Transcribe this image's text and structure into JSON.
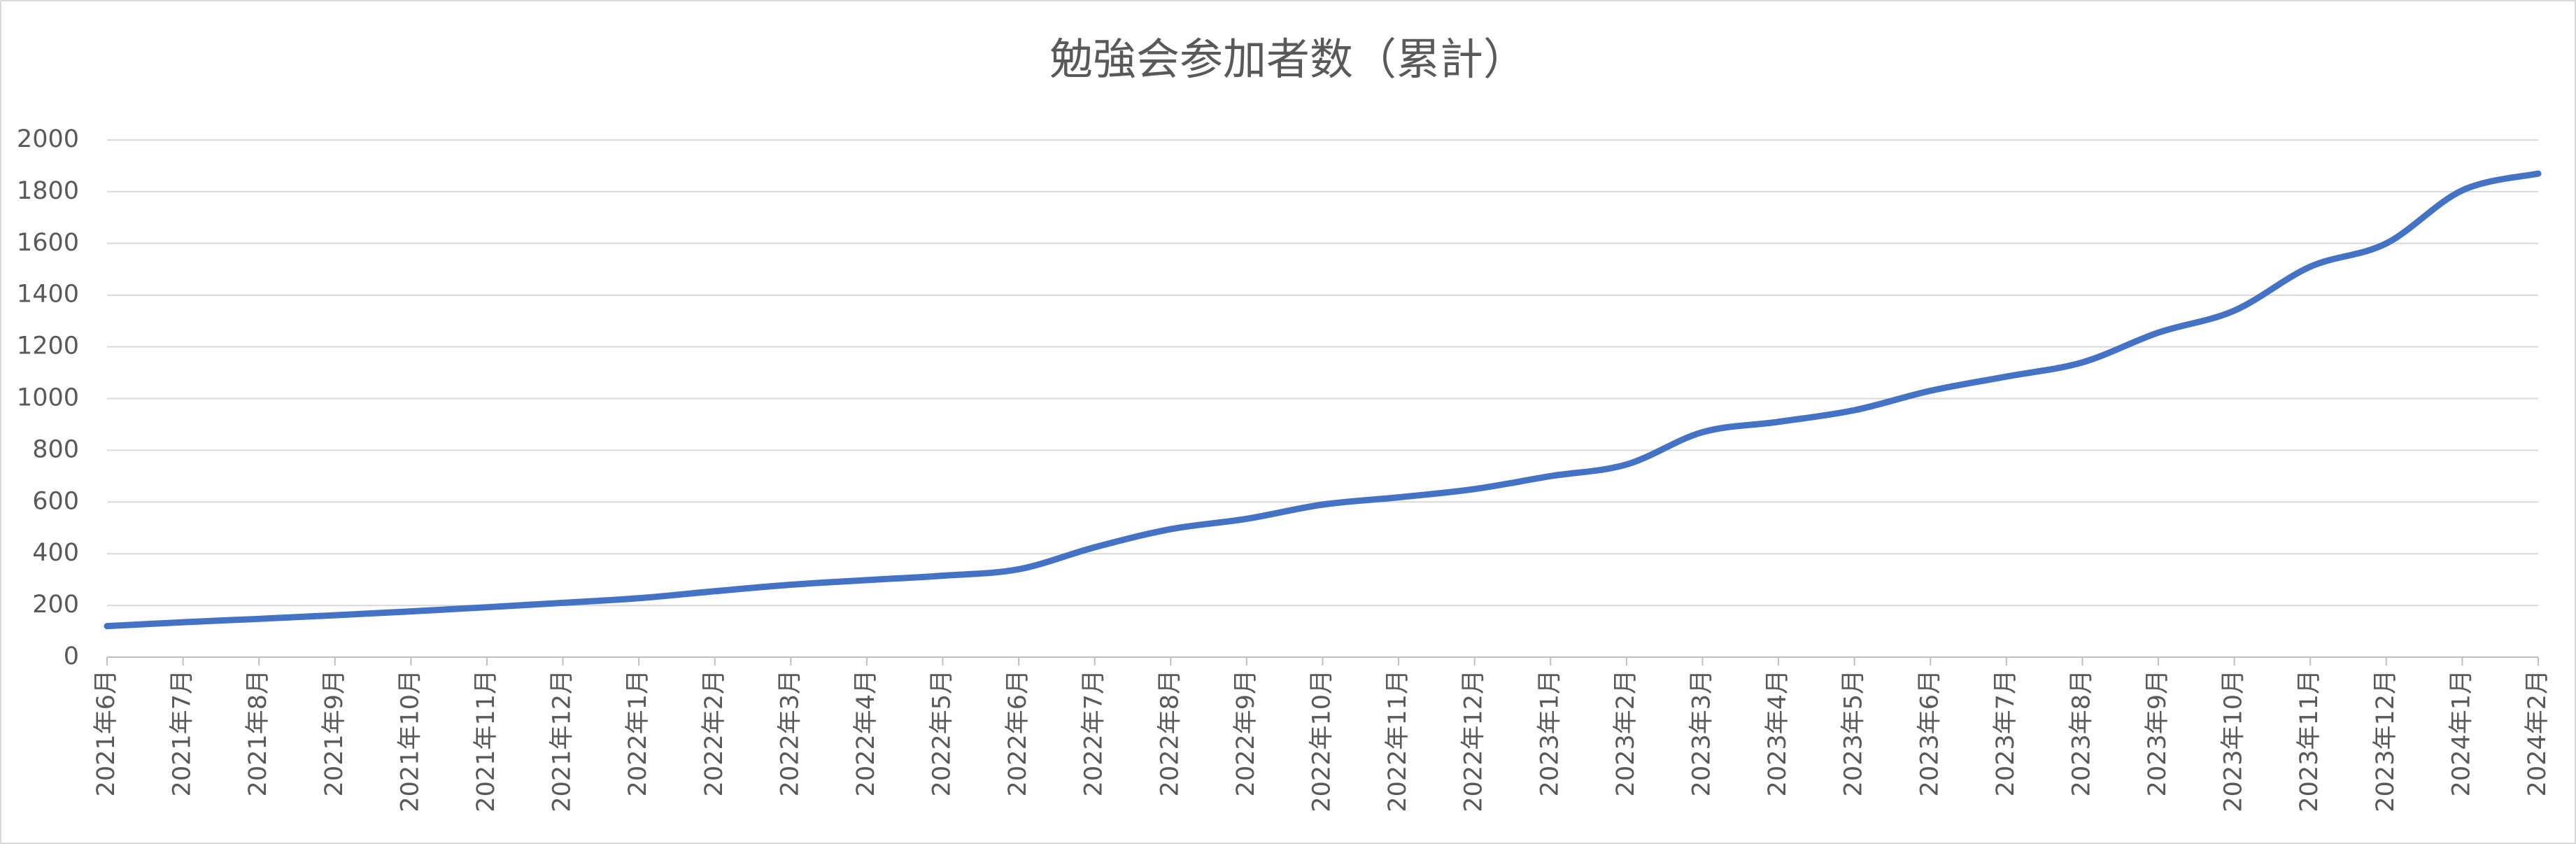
{
  "chart_data": {
    "type": "line",
    "title": "勉強会参加者数（累計）",
    "categories": [
      "2021年6月",
      "2021年7月",
      "2021年8月",
      "2021年9月",
      "2021年10月",
      "2021年11月",
      "2021年12月",
      "2022年1月",
      "2022年2月",
      "2022年3月",
      "2022年4月",
      "2022年5月",
      "2022年6月",
      "2022年7月",
      "2022年8月",
      "2022年9月",
      "2022年10月",
      "2022年11月",
      "2022年12月",
      "2023年1月",
      "2023年2月",
      "2023年3月",
      "2023年4月",
      "2023年5月",
      "2023年6月",
      "2023年7月",
      "2023年8月",
      "2023年9月",
      "2023年10月",
      "2023年11月",
      "2023年12月",
      "2024年1月",
      "2024年2月"
    ],
    "values": [
      120,
      135,
      148,
      162,
      177,
      193,
      210,
      228,
      255,
      280,
      298,
      315,
      340,
      425,
      495,
      535,
      590,
      618,
      650,
      700,
      745,
      870,
      910,
      955,
      1030,
      1085,
      1140,
      1255,
      1340,
      1510,
      1600,
      1805,
      1870
    ],
    "color": "#4472c4",
    "ylim": [
      0,
      2000
    ],
    "yticks": [
      0,
      200,
      400,
      600,
      800,
      1000,
      1200,
      1400,
      1600,
      1800,
      2000
    ],
    "grid": true
  }
}
